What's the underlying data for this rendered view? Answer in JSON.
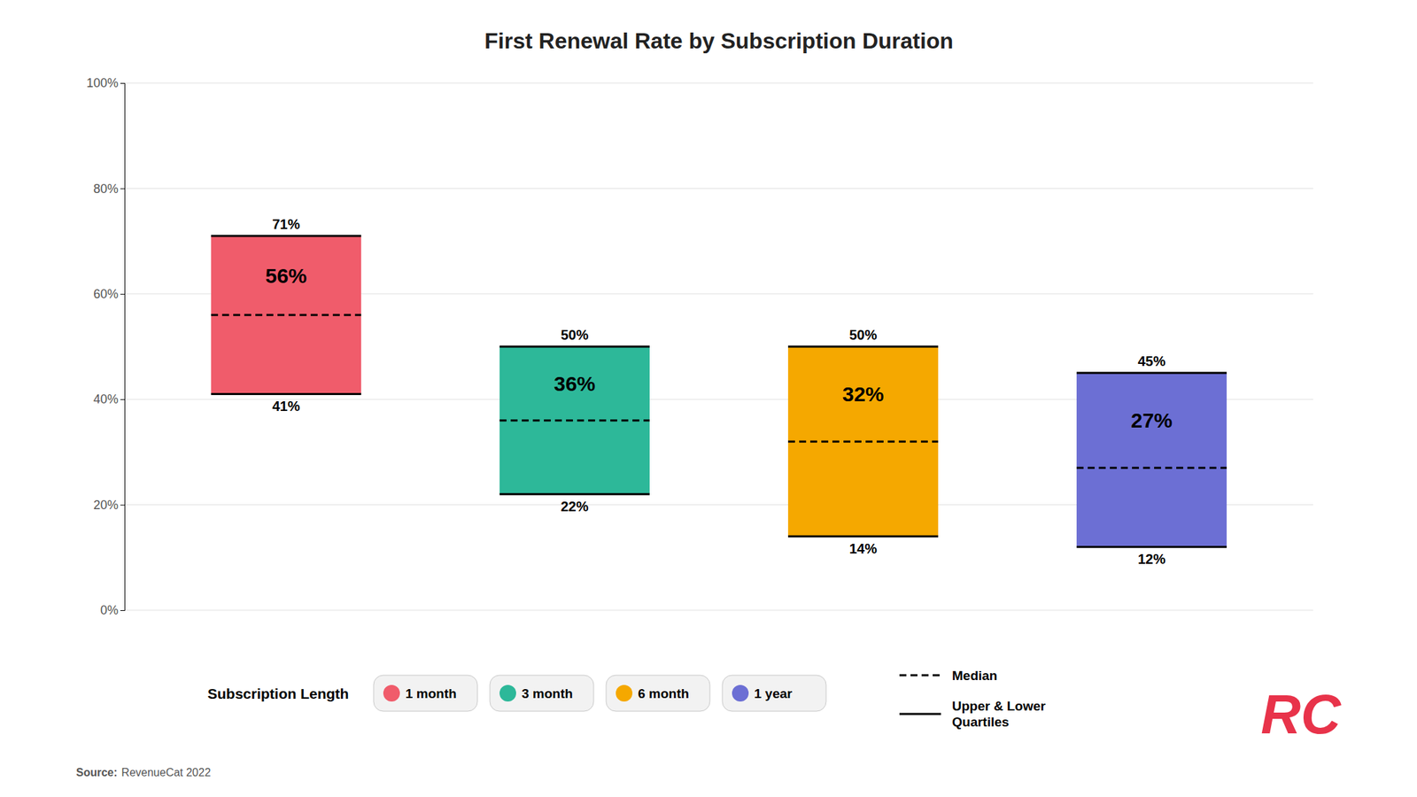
{
  "chart_data": {
    "type": "box",
    "title": "First Renewal Rate by Subscription Duration",
    "categories": [
      "1 month",
      "3 month",
      "6 month",
      "1 year"
    ],
    "colors": [
      "#F05C6B",
      "#2DB899",
      "#F5A800",
      "#6C6FD4"
    ],
    "legend_title": "Subscription Length",
    "series": [
      {
        "name": "Median",
        "line_style": "dashed",
        "values": [
          56,
          36,
          32,
          27
        ],
        "value_labels": [
          "56%",
          "36%",
          "32%",
          "27%"
        ]
      },
      {
        "name": "Upper & Lower\nQuartiles",
        "line_style": "solid",
        "upper": [
          71,
          50,
          50,
          45
        ],
        "upper_labels": [
          "71%",
          "50%",
          "50%",
          "45%"
        ],
        "lower": [
          41,
          22,
          14,
          12
        ],
        "lower_labels": [
          "41%",
          "22%",
          "14%",
          "12%"
        ]
      }
    ],
    "data_labels": true,
    "ylim": [
      0,
      100
    ],
    "yticks": [
      {
        "value": 0,
        "label": "0%"
      },
      {
        "value": 20,
        "label": "20%"
      },
      {
        "value": 40,
        "label": "40%"
      },
      {
        "value": 60,
        "label": "60%"
      },
      {
        "value": 80,
        "label": "80%"
      },
      {
        "value": 100,
        "label": "100%"
      }
    ],
    "grid": true,
    "tick_labels": "y",
    "source_label": "Source:",
    "source": "RevenueCat 2022",
    "logo": {
      "text": "RC",
      "color": "#E8334A"
    }
  }
}
